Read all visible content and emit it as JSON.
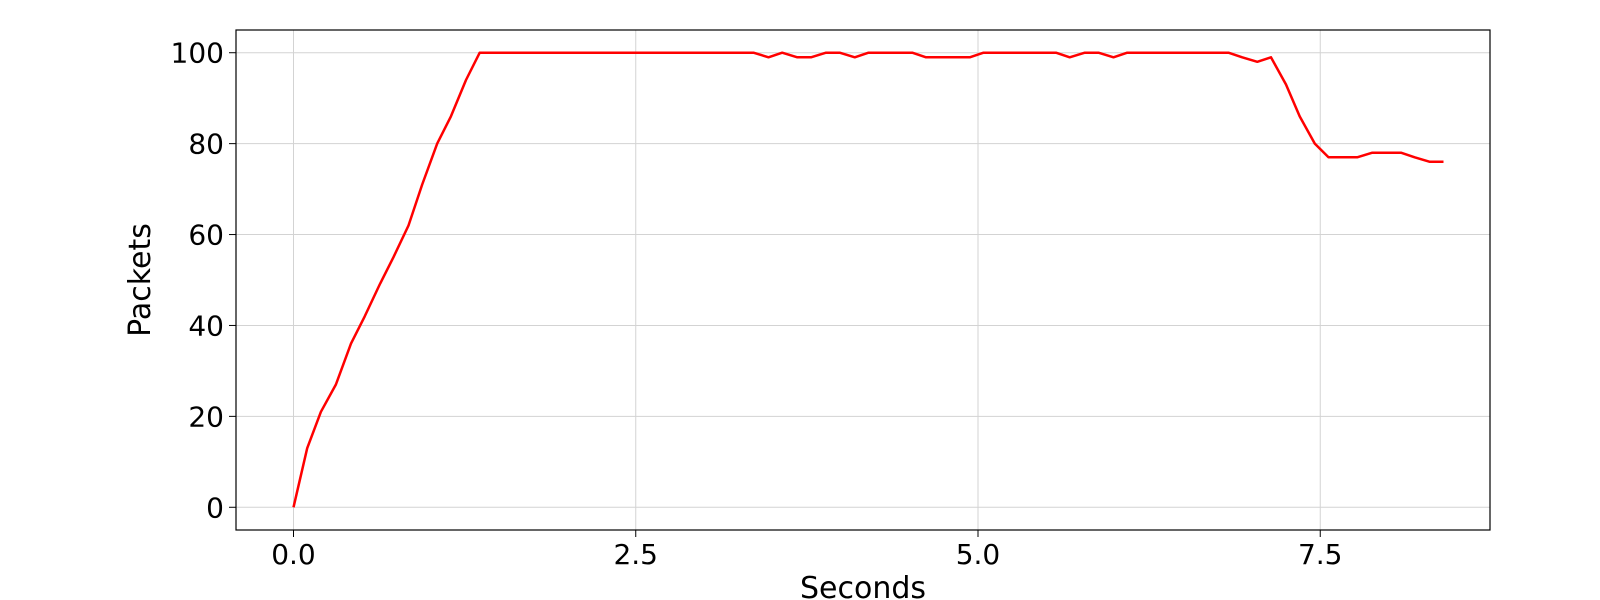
{
  "chart_data": {
    "type": "line",
    "title": "",
    "xlabel": "Seconds",
    "ylabel": "Packets",
    "xlim": [
      -0.42,
      8.74
    ],
    "ylim": [
      -5,
      105
    ],
    "xticks": [
      0.0,
      2.5,
      5.0,
      7.5
    ],
    "xtick_labels": [
      "0.0",
      "2.5",
      "5.0",
      "7.5"
    ],
    "yticks": [
      0,
      20,
      40,
      60,
      80,
      100
    ],
    "ytick_labels": [
      "0",
      "20",
      "40",
      "60",
      "80",
      "100"
    ],
    "grid": true,
    "series_color": "#ff0000",
    "series": [
      {
        "x": [
          0.0,
          0.1,
          0.2,
          0.31,
          0.42,
          0.52,
          0.63,
          0.73,
          0.84,
          0.94,
          1.05,
          1.15,
          1.26,
          1.36,
          1.47,
          3.36,
          3.47,
          3.57,
          3.68,
          3.78,
          3.89,
          3.99,
          4.1,
          4.2,
          4.31,
          4.41,
          4.52,
          4.62,
          4.73,
          4.83,
          4.94,
          5.04,
          5.15,
          5.57,
          5.67,
          5.78,
          5.88,
          5.99,
          6.09,
          6.83,
          6.93,
          7.04,
          7.14,
          7.25,
          7.35,
          7.46,
          7.56,
          7.67,
          7.77,
          7.88,
          7.98,
          8.09,
          8.19,
          8.3,
          8.4
        ],
        "y": [
          0,
          13,
          21,
          27,
          36,
          42,
          49,
          55,
          62,
          71,
          80,
          86,
          94,
          100,
          100,
          100,
          99,
          100,
          99,
          99,
          100,
          100,
          99,
          100,
          100,
          100,
          100,
          99,
          99,
          99,
          99,
          100,
          100,
          100,
          99,
          100,
          100,
          99,
          100,
          100,
          99,
          98,
          99,
          93,
          86,
          80,
          77,
          77,
          77,
          78,
          78,
          78,
          77,
          76,
          76
        ]
      }
    ]
  }
}
